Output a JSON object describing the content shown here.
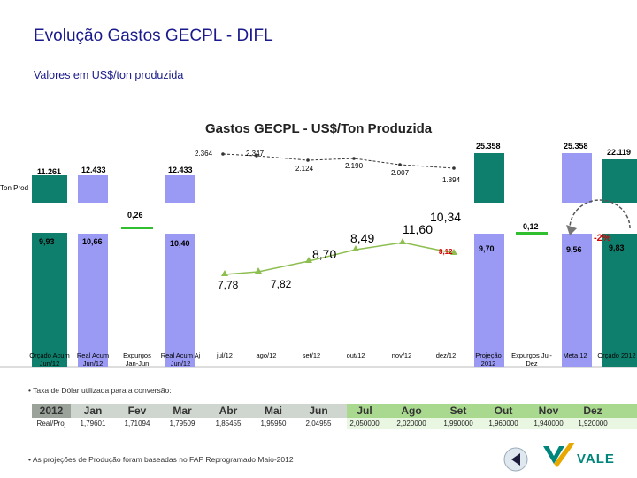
{
  "header": {
    "title": "Evolução Gastos GECPL - DIFL",
    "subtitle": "Valores em US$/ton produzida"
  },
  "chart": {
    "title": "Gastos GECPL - US$/Ton Produzida",
    "side_label": "Ton Prod",
    "change_label": "-2%"
  },
  "chart_data": {
    "type": "bar",
    "title": "Gastos GECPL - US$/Ton Produzida",
    "categories": [
      "Orçado Acum Jun/12",
      "Real Acum Jun/12",
      "Expurgos Jan-Jun",
      "Real Acum Aj Jun/12",
      "jul/12",
      "ago/12",
      "set/12",
      "out/12",
      "nov/12",
      "dez/12",
      "Projeção 2012",
      "Expurgos Jul-Dez",
      "Meta 12",
      "Orçado 2012"
    ],
    "cost_per_ton": {
      "bars": [
        {
          "category": "Orçado Acum Jun/12",
          "value": "9,93",
          "color": "#0f7f6d"
        },
        {
          "category": "Real Acum Jun/12",
          "value": "10,66",
          "color": "#9a9af5"
        },
        {
          "category": "Expurgos Jan-Jun",
          "value": "0,26",
          "color": "#2fbf2f"
        },
        {
          "category": "Real Acum Aj Jun/12",
          "value": "10,40",
          "color": "#9a9af5"
        },
        {
          "category": "Projeção 2012",
          "value": "9,70",
          "color": "#9a9af5"
        },
        {
          "category": "Expurgos Jul-Dez",
          "value": "0,12",
          "color": "#2fbf2f"
        },
        {
          "category": "Meta 12",
          "value": "9,56",
          "color": "#9a9af5"
        },
        {
          "category": "Orçado 2012",
          "value": "9,83",
          "color": "#0f7f6d"
        }
      ],
      "monthly_line": [
        {
          "month": "jul/12",
          "value": "7,78"
        },
        {
          "month": "ago/12",
          "value": "7,82"
        },
        {
          "month": "set/12",
          "value": "8,70"
        },
        {
          "month": "out/12",
          "value": "8,49"
        },
        {
          "month": "nov/12",
          "value": "11,60"
        },
        {
          "month": "dez/12",
          "value": "10,34"
        }
      ],
      "extra_label": "8,12"
    },
    "production": {
      "bars": [
        {
          "category": "Orçado Acum Jun/12",
          "value": "11.261"
        },
        {
          "category": "Real Acum Jun/12",
          "value": "12.433"
        },
        {
          "category": "Real Acum Aj Jun/12",
          "value": "12.433"
        },
        {
          "category": "Projeção 2012",
          "value": "25.358"
        },
        {
          "category": "Meta 12",
          "value": "25.358"
        },
        {
          "category": "Orçado 2012",
          "value": "22.119"
        }
      ],
      "monthly_line": [
        {
          "month": "jul/12",
          "value": "2.364"
        },
        {
          "month": "ago/12",
          "value": "2.347"
        },
        {
          "month": "set/12",
          "value": "2.124"
        },
        {
          "month": "out/12",
          "value": "2.190"
        },
        {
          "month": "nov/12",
          "value": "2.007"
        },
        {
          "month": "dez/12",
          "value": "1.894"
        }
      ]
    },
    "colors": {
      "budget": "#0f7f6d",
      "actual": "#9a9af5",
      "adjustment": "#2fbf2f",
      "line": "#8dbe50"
    }
  },
  "notes": {
    "exchange": "• Taxa de Dólar utilizada para a conversão:",
    "production": "• As projeções de Produção foram baseadas no FAP Reprogramado Maio-2012"
  },
  "rates": {
    "header": [
      "2012",
      "Jan",
      "Fev",
      "Mar",
      "Abr",
      "Mai",
      "Jun",
      "Jul",
      "Ago",
      "Set",
      "Out",
      "Nov",
      "Dez"
    ],
    "row": [
      "Real/Proj",
      "1,79601",
      "1,71094",
      "1,79509",
      "1,85455",
      "1,95950",
      "2,04955",
      "2,050000",
      "2,020000",
      "1,990000",
      "1,960000",
      "1,940000",
      "1,920000"
    ]
  },
  "brand": {
    "logo_text": "VALE"
  }
}
